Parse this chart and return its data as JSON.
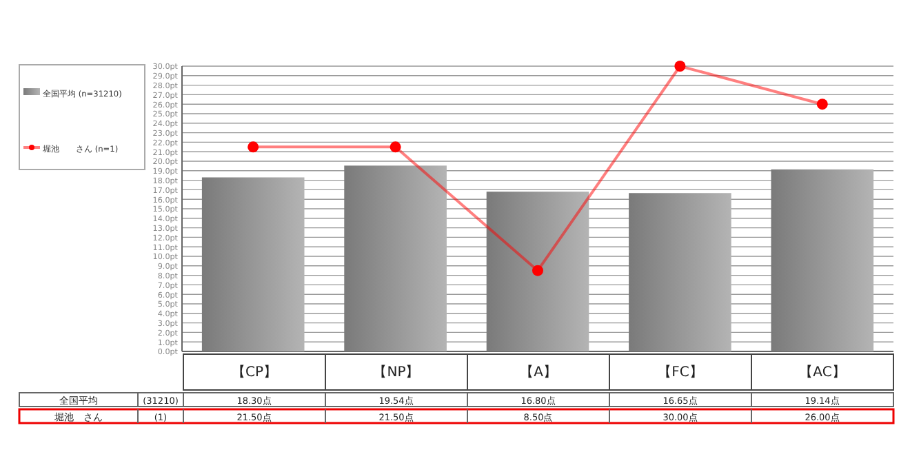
{
  "chart_data": {
    "type": "bar",
    "categories": [
      "【CP】",
      "【NP】",
      "【A】",
      "【FC】",
      "【AC】"
    ],
    "series": [
      {
        "name": "全国平均 (n=31210)",
        "color": "#b4b4b4",
        "values": [
          18.3,
          19.54,
          16.8,
          16.65,
          19.14
        ],
        "value_labels": [
          "18.30点",
          "19.54点",
          "16.80点",
          "16.65点",
          "19.14点"
        ]
      },
      {
        "name": "堀池　　さん (n=1)",
        "type": "line",
        "color": "#ff0000",
        "values": [
          21.5,
          21.5,
          8.5,
          30.0,
          26.0
        ],
        "value_labels": [
          "21.50点",
          "21.50点",
          "8.50点",
          "30.00点",
          "26.00点"
        ]
      }
    ],
    "ylim": [
      0,
      30
    ],
    "yticks": [
      {
        "value": 0,
        "label": "0.0pt"
      },
      {
        "value": 1,
        "label": "1.0pt"
      },
      {
        "value": 2,
        "label": "2.0pt"
      },
      {
        "value": 3,
        "label": "3.0pt"
      },
      {
        "value": 4,
        "label": "4.0pt"
      },
      {
        "value": 5,
        "label": "5.0pt"
      },
      {
        "value": 6,
        "label": "6.0pt"
      },
      {
        "value": 7,
        "label": "7.0pt"
      },
      {
        "value": 8,
        "label": "8.0pt"
      },
      {
        "value": 9,
        "label": "9.0pt"
      },
      {
        "value": 10,
        "label": "10.0pt"
      },
      {
        "value": 11,
        "label": "11.0pt"
      },
      {
        "value": 12,
        "label": "12.0pt"
      },
      {
        "value": 13,
        "label": "13.0pt"
      },
      {
        "value": 14,
        "label": "14.0pt"
      },
      {
        "value": 15,
        "label": "15.0pt"
      },
      {
        "value": 16,
        "label": "16.0pt"
      },
      {
        "value": 17,
        "label": "17.0pt"
      },
      {
        "value": 18,
        "label": "18.0pt"
      },
      {
        "value": 19,
        "label": "19.0pt"
      },
      {
        "value": 20,
        "label": "20.0pt"
      },
      {
        "value": 21,
        "label": "21.0pt"
      },
      {
        "value": 22,
        "label": "22.0pt"
      },
      {
        "value": 23,
        "label": "23.0pt"
      },
      {
        "value": 24,
        "label": "24.0pt"
      },
      {
        "value": 25,
        "label": "25.0pt"
      },
      {
        "value": 26,
        "label": "26.0pt"
      },
      {
        "value": 27,
        "label": "27.0pt"
      },
      {
        "value": 28,
        "label": "28.0pt"
      },
      {
        "value": 29,
        "label": "29.0pt"
      },
      {
        "value": 30,
        "label": "30.0pt"
      }
    ],
    "grid": "y",
    "legend": "left",
    "marker": "circle",
    "annotations": [
      "全国平均",
      "(31210)",
      "堀池　さん",
      "(1)"
    ]
  }
}
